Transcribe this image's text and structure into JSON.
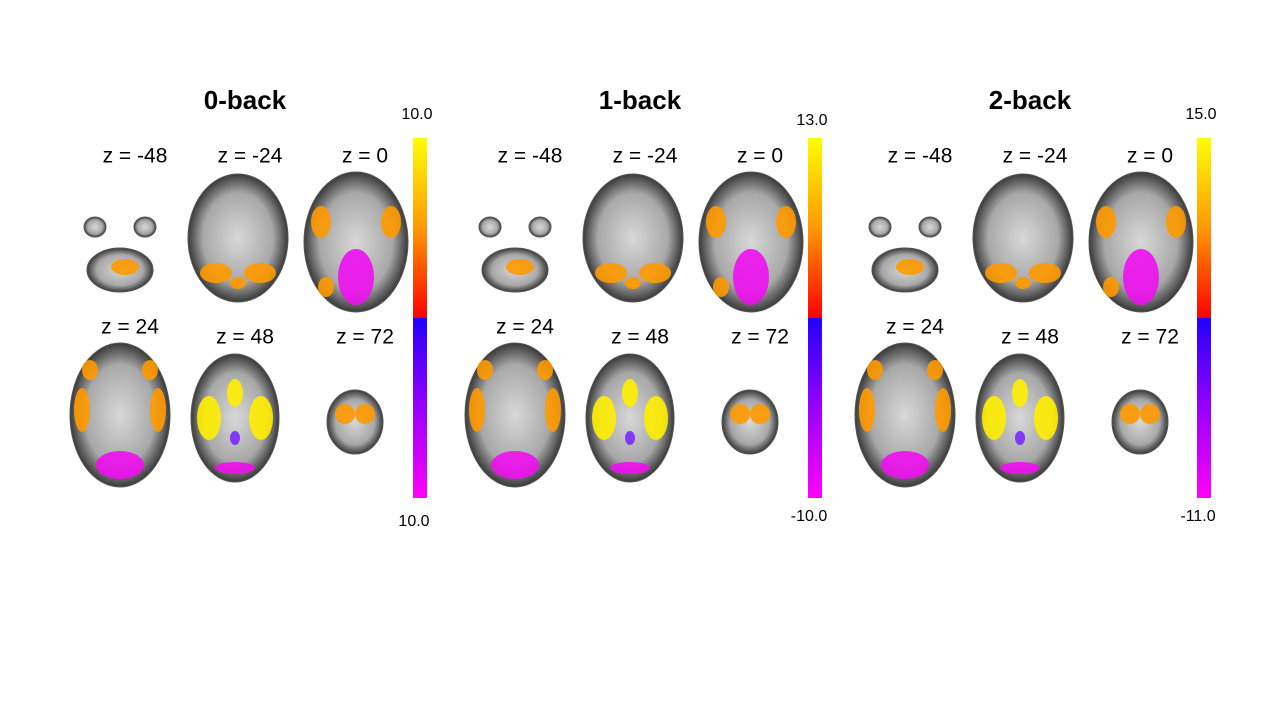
{
  "panels": [
    {
      "title": "0-back",
      "slices": [
        "z = -48",
        "z = -24",
        "z = 0",
        "z = 24",
        "z = 48",
        "z = 72"
      ],
      "colorbar": {
        "max": "10.0",
        "min": "10.0"
      }
    },
    {
      "title": "1-back",
      "slices": [
        "z = -48",
        "z = -24",
        "z = 0",
        "z = 24",
        "z = 48",
        "z = 72"
      ],
      "colorbar": {
        "max": "13.0",
        "min": "-10.0"
      }
    },
    {
      "title": "2-back",
      "slices": [
        "z = -48",
        "z = -24",
        "z = 0",
        "z = 24",
        "z = 48",
        "z = 72"
      ],
      "colorbar": {
        "max": "15.0",
        "min": "-11.0"
      }
    }
  ]
}
